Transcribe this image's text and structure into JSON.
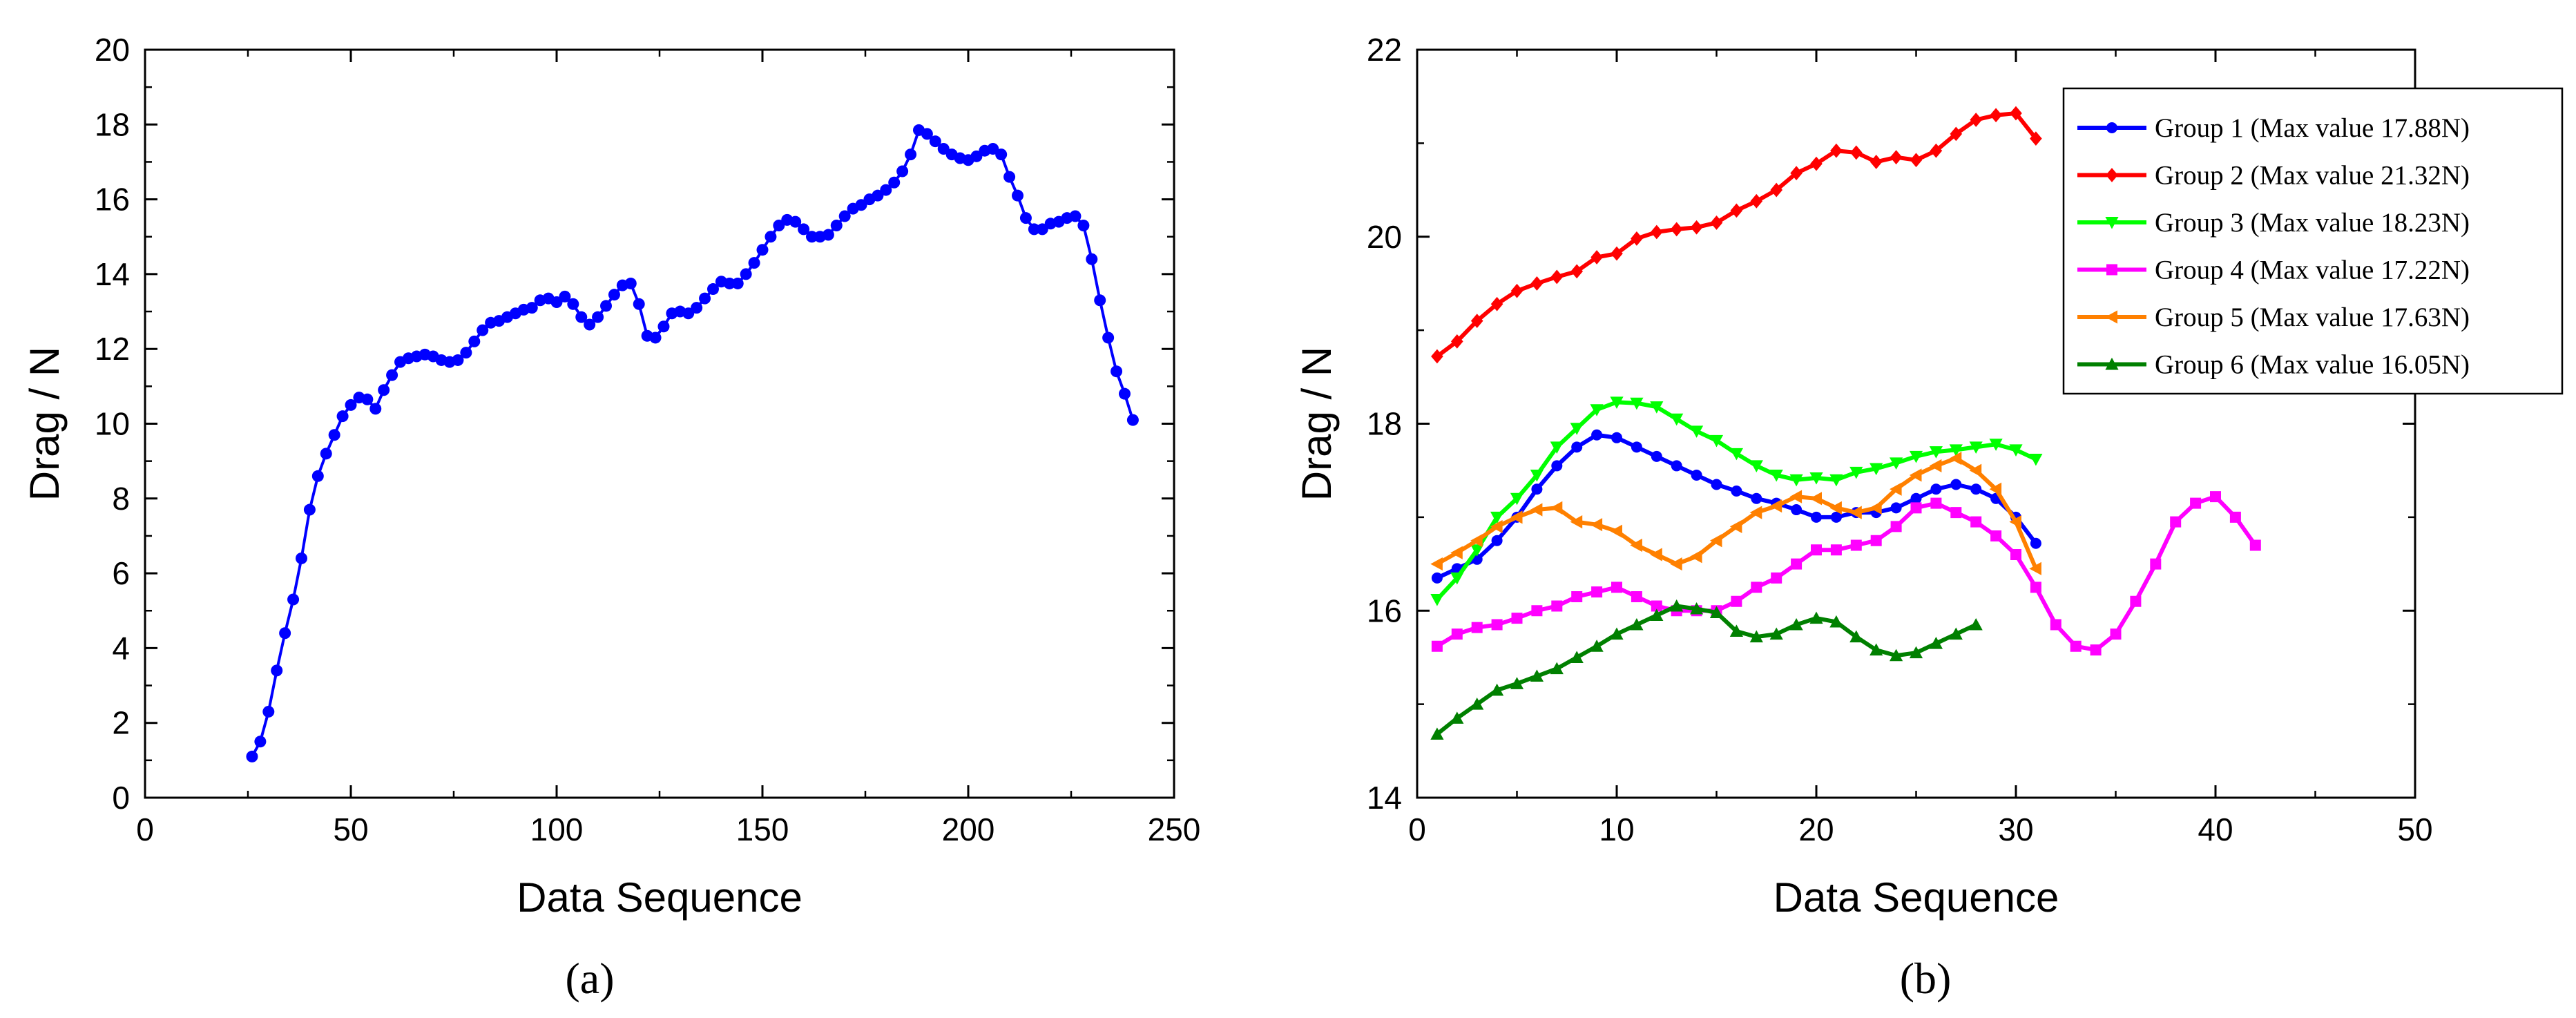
{
  "chart_data": [
    {
      "panel_label": "(a)",
      "type": "line",
      "xlabel": "Data Sequence",
      "ylabel": "Drag / N",
      "xlim": [
        0,
        250
      ],
      "ylim": [
        0,
        20
      ],
      "xticks": [
        0,
        50,
        100,
        150,
        200,
        250
      ],
      "yticks": [
        0,
        2,
        4,
        6,
        8,
        10,
        12,
        14,
        16,
        18,
        20
      ],
      "series": [
        {
          "name": "Drag",
          "color": "#0000ff",
          "marker": "circle",
          "x": [
            26,
            28,
            30,
            32,
            34,
            36,
            38,
            40,
            42,
            44,
            46,
            48,
            50,
            52,
            54,
            56,
            58,
            60,
            62,
            64,
            66,
            68,
            70,
            72,
            74,
            76,
            78,
            80,
            82,
            84,
            86,
            88,
            90,
            92,
            94,
            96,
            98,
            100,
            102,
            104,
            106,
            108,
            110,
            112,
            114,
            116,
            118,
            120,
            122,
            124,
            126,
            128,
            130,
            132,
            134,
            136,
            138,
            140,
            142,
            144,
            146,
            148,
            150,
            152,
            154,
            156,
            158,
            160,
            162,
            164,
            166,
            168,
            170,
            172,
            174,
            176,
            178,
            180,
            182,
            184,
            186,
            188,
            190,
            192,
            194,
            196,
            198,
            200,
            202,
            204,
            206,
            208,
            210,
            212,
            214,
            216,
            218,
            220,
            222,
            224,
            226,
            228,
            230,
            232,
            234,
            236,
            238,
            240
          ],
          "y": [
            1.1,
            1.5,
            2.3,
            3.4,
            4.4,
            5.3,
            6.4,
            7.7,
            8.6,
            9.2,
            9.7,
            10.2,
            10.5,
            10.7,
            10.65,
            10.4,
            10.9,
            11.3,
            11.65,
            11.75,
            11.8,
            11.85,
            11.8,
            11.7,
            11.65,
            11.7,
            11.9,
            12.2,
            12.5,
            12.7,
            12.75,
            12.85,
            12.95,
            13.05,
            13.1,
            13.3,
            13.35,
            13.25,
            13.4,
            13.2,
            12.85,
            12.65,
            12.85,
            13.15,
            13.45,
            13.7,
            13.75,
            13.2,
            12.35,
            12.3,
            12.6,
            12.95,
            13.0,
            12.95,
            13.1,
            13.35,
            13.6,
            13.8,
            13.75,
            13.75,
            14.0,
            14.3,
            14.65,
            15.0,
            15.3,
            15.45,
            15.4,
            15.2,
            15.0,
            15.0,
            15.05,
            15.3,
            15.55,
            15.75,
            15.85,
            16.0,
            16.1,
            16.25,
            16.45,
            16.75,
            17.2,
            17.85,
            17.75,
            17.55,
            17.35,
            17.2,
            17.1,
            17.05,
            17.15,
            17.3,
            17.35,
            17.2,
            16.6,
            16.1,
            15.5,
            15.2,
            15.2,
            15.35,
            15.4,
            15.5,
            15.55,
            15.3,
            14.4,
            13.3,
            12.3,
            11.4,
            10.8,
            10.1
          ]
        }
      ]
    },
    {
      "panel_label": "(b)",
      "type": "line",
      "xlabel": "Data Sequence",
      "ylabel": "Drag / N",
      "xlim": [
        0,
        50
      ],
      "ylim": [
        14,
        22
      ],
      "xticks": [
        0,
        10,
        20,
        30,
        40,
        50
      ],
      "yticks": [
        14,
        16,
        18,
        20,
        22
      ],
      "legend_position": "top-right",
      "series": [
        {
          "name": "Group 1 (Max value 17.88N)",
          "color": "#0000ff",
          "marker": "circle",
          "x": [
            1,
            2,
            3,
            4,
            5,
            6,
            7,
            8,
            9,
            10,
            11,
            12,
            13,
            14,
            15,
            16,
            17,
            18,
            19,
            20,
            21,
            22,
            23,
            24,
            25,
            26,
            27,
            28,
            29,
            30,
            31
          ],
          "y": [
            16.35,
            16.45,
            16.55,
            16.75,
            17.0,
            17.3,
            17.55,
            17.75,
            17.88,
            17.85,
            17.75,
            17.65,
            17.55,
            17.45,
            17.35,
            17.28,
            17.2,
            17.15,
            17.08,
            17.0,
            17.0,
            17.05,
            17.05,
            17.1,
            17.2,
            17.3,
            17.35,
            17.3,
            17.2,
            17.0,
            16.72
          ]
        },
        {
          "name": "Group 2 (Max value 21.32N)",
          "color": "#ff0000",
          "marker": "diamond",
          "x": [
            1,
            2,
            3,
            4,
            5,
            6,
            7,
            8,
            9,
            10,
            11,
            12,
            13,
            14,
            15,
            16,
            17,
            18,
            19,
            20,
            21,
            22,
            23,
            24,
            25,
            26,
            27,
            28,
            29,
            30,
            31
          ],
          "y": [
            18.72,
            18.88,
            19.1,
            19.28,
            19.42,
            19.5,
            19.57,
            19.63,
            19.78,
            19.82,
            19.98,
            20.05,
            20.08,
            20.1,
            20.15,
            20.28,
            20.38,
            20.5,
            20.68,
            20.78,
            20.92,
            20.9,
            20.8,
            20.85,
            20.82,
            20.92,
            21.1,
            21.25,
            21.3,
            21.32,
            21.05
          ]
        },
        {
          "name": "Group 3 (Max value 18.23N)",
          "color": "#00ff00",
          "marker": "triangle-down",
          "x": [
            1,
            2,
            3,
            4,
            5,
            6,
            7,
            8,
            9,
            10,
            11,
            12,
            13,
            14,
            15,
            16,
            17,
            18,
            19,
            20,
            21,
            22,
            23,
            24,
            25,
            26,
            27,
            28,
            29,
            30,
            31
          ],
          "y": [
            16.12,
            16.35,
            16.65,
            17.0,
            17.2,
            17.45,
            17.75,
            17.95,
            18.15,
            18.23,
            18.22,
            18.18,
            18.05,
            17.92,
            17.82,
            17.68,
            17.55,
            17.45,
            17.4,
            17.42,
            17.4,
            17.48,
            17.52,
            17.58,
            17.65,
            17.7,
            17.72,
            17.75,
            17.78,
            17.72,
            17.62
          ]
        },
        {
          "name": "Group 4 (Max value 17.22N)",
          "color": "#ff00ff",
          "marker": "square",
          "x": [
            1,
            2,
            3,
            4,
            5,
            6,
            7,
            8,
            9,
            10,
            11,
            12,
            13,
            14,
            15,
            16,
            17,
            18,
            19,
            20,
            21,
            22,
            23,
            24,
            25,
            26,
            27,
            28,
            29,
            30,
            31,
            32,
            33,
            34,
            35,
            36,
            37,
            38,
            39,
            40,
            41,
            42
          ],
          "y": [
            15.62,
            15.75,
            15.82,
            15.85,
            15.92,
            16.0,
            16.05,
            16.15,
            16.2,
            16.25,
            16.15,
            16.05,
            16.0,
            16.0,
            16.0,
            16.1,
            16.25,
            16.35,
            16.5,
            16.65,
            16.65,
            16.7,
            16.75,
            16.9,
            17.1,
            17.15,
            17.05,
            16.95,
            16.8,
            16.6,
            16.25,
            15.85,
            15.62,
            15.58,
            15.75,
            16.1,
            16.5,
            16.95,
            17.15,
            17.22,
            17.0,
            16.7
          ]
        },
        {
          "name": "Group 5 (Max value 17.63N)",
          "color": "#ff8000",
          "marker": "triangle-left",
          "x": [
            1,
            2,
            3,
            4,
            5,
            6,
            7,
            8,
            9,
            10,
            11,
            12,
            13,
            14,
            15,
            16,
            17,
            18,
            19,
            20,
            21,
            22,
            23,
            24,
            25,
            26,
            27,
            28,
            29,
            30,
            31
          ],
          "y": [
            16.5,
            16.62,
            16.75,
            16.9,
            17.0,
            17.08,
            17.1,
            16.95,
            16.92,
            16.85,
            16.7,
            16.6,
            16.5,
            16.58,
            16.75,
            16.9,
            17.05,
            17.12,
            17.22,
            17.2,
            17.1,
            17.05,
            17.1,
            17.3,
            17.45,
            17.55,
            17.63,
            17.5,
            17.3,
            16.95,
            16.45
          ]
        },
        {
          "name": "Group 6 (Max value 16.05N)",
          "color": "#008000",
          "marker": "triangle-up",
          "x": [
            1,
            2,
            3,
            4,
            5,
            6,
            7,
            8,
            9,
            10,
            11,
            12,
            13,
            14,
            15,
            16,
            17,
            18,
            19,
            20,
            21,
            22,
            23,
            24,
            25,
            26,
            27,
            28
          ],
          "y": [
            14.68,
            14.85,
            15.0,
            15.15,
            15.22,
            15.3,
            15.38,
            15.5,
            15.62,
            15.75,
            15.85,
            15.95,
            16.05,
            16.02,
            15.98,
            15.78,
            15.72,
            15.75,
            15.85,
            15.92,
            15.88,
            15.72,
            15.58,
            15.52,
            15.55,
            15.65,
            15.75,
            15.85
          ]
        }
      ]
    }
  ]
}
